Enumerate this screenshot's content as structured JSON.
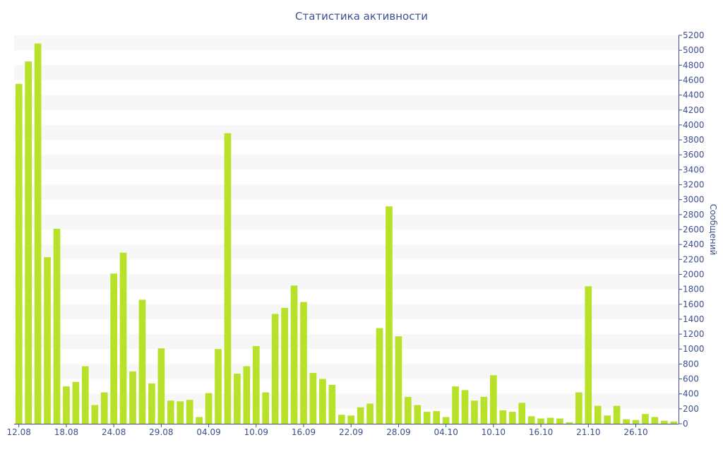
{
  "chart_data": {
    "type": "bar",
    "title": "Статистика активности",
    "ylabel": "Сообщений",
    "xlabel": "",
    "ylim": [
      0,
      5200
    ],
    "y_tick_step": 200,
    "y_axis_position": "right",
    "grid": "horizontal bands",
    "legend": "none",
    "bar_color": "#b8e12a",
    "band_color": "#f7f7f7",
    "axis_color": "#3d4f8f",
    "x_tick_labels": [
      {
        "index": 0,
        "label": "12.08"
      },
      {
        "index": 5,
        "label": "18.08"
      },
      {
        "index": 10,
        "label": "24.08"
      },
      {
        "index": 15,
        "label": "29.08"
      },
      {
        "index": 20,
        "label": "04.09"
      },
      {
        "index": 25,
        "label": "10.09"
      },
      {
        "index": 30,
        "label": "16.09"
      },
      {
        "index": 35,
        "label": "22.09"
      },
      {
        "index": 40,
        "label": "28.09"
      },
      {
        "index": 45,
        "label": "04.10"
      },
      {
        "index": 50,
        "label": "10.10"
      },
      {
        "index": 55,
        "label": "16.10"
      },
      {
        "index": 60,
        "label": "21.10"
      },
      {
        "index": 65,
        "label": "26.10"
      }
    ],
    "values": [
      4550,
      4850,
      5090,
      2230,
      2610,
      500,
      560,
      770,
      250,
      420,
      2010,
      2290,
      700,
      1660,
      540,
      1010,
      310,
      300,
      320,
      90,
      410,
      1000,
      3890,
      670,
      770,
      1040,
      420,
      1470,
      1550,
      1850,
      1630,
      680,
      600,
      520,
      120,
      110,
      220,
      270,
      1280,
      2910,
      1170,
      360,
      250,
      160,
      170,
      90,
      500,
      450,
      310,
      360,
      650,
      180,
      160,
      280,
      100,
      70,
      80,
      70,
      20,
      420,
      1840,
      240,
      110,
      240,
      60,
      50,
      130,
      90,
      40,
      30
    ]
  }
}
